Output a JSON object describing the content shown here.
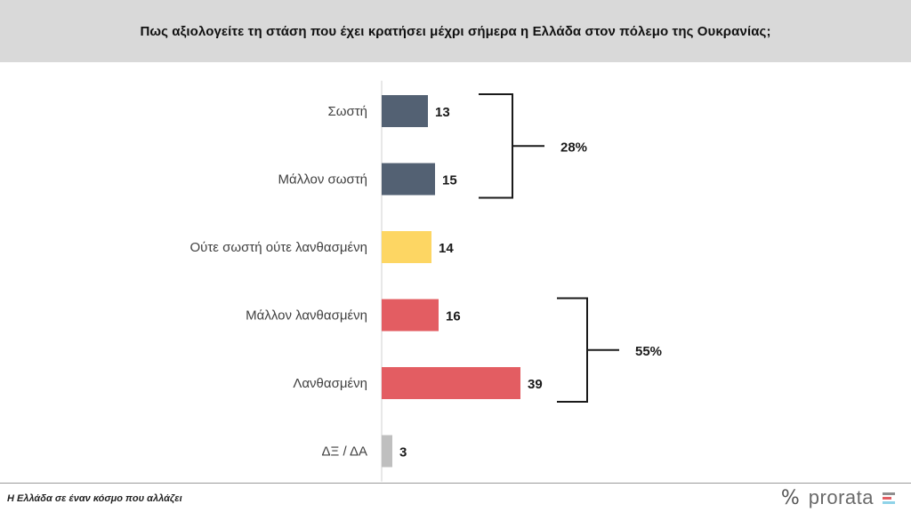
{
  "header": {
    "title": "Πως αξιολογείτε τη στάση που έχει κρατήσει μέχρι σήμερα η Ελλάδα στον πόλεμο της Ουκρανίας;"
  },
  "chart_data": {
    "type": "bar",
    "orientation": "horizontal",
    "title": "Πως αξιολογείτε τη στάση που έχει κρατήσει μέχρι σήμερα η Ελλάδα στον πόλεμο της Ουκρανίας;",
    "categories": [
      "Σωστή",
      "Μάλλον σωστή",
      "Ούτε σωστή ούτε λανθασμένη",
      "Μάλλον λανθασμένη",
      "Λανθασμένη",
      "ΔΞ / ΔΑ"
    ],
    "values": [
      13,
      15,
      14,
      16,
      39,
      3
    ],
    "bar_colors": [
      "#536173",
      "#536173",
      "#fdd663",
      "#e35d62",
      "#e35d62",
      "#bfbfbf"
    ],
    "value_labels": [
      "13",
      "15",
      "14",
      "16",
      "39",
      "3"
    ],
    "groups": [
      {
        "label": "28%",
        "from": 0,
        "to": 1
      },
      {
        "label": "55%",
        "from": 3,
        "to": 4
      }
    ],
    "xlim": [
      0,
      40
    ],
    "grid": false,
    "legend": "none"
  },
  "footer": {
    "caption": "Η Ελλάδα σε έναν κόσμο που αλλάζει",
    "logo_symbol": "%",
    "logo_text": "prorata",
    "logo_bar_colors": [
      "#8e8e8e",
      "#e35d62",
      "#8fd3e8"
    ]
  }
}
